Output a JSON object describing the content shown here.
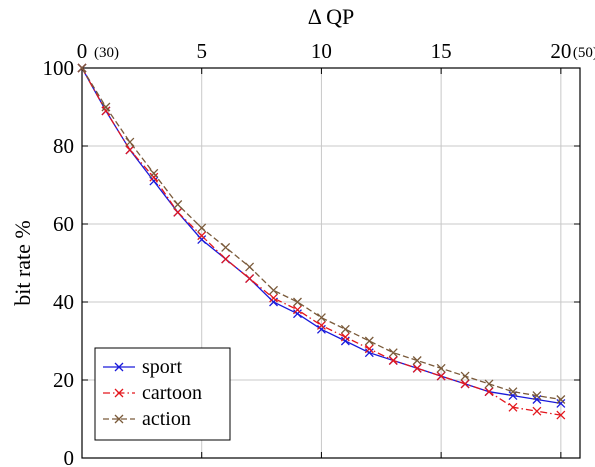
{
  "chart_data": {
    "type": "line",
    "xlabel": "Δ QP",
    "ylabel": "bit rate %",
    "xlim": [
      0,
      20.8
    ],
    "ylim": [
      0,
      100
    ],
    "x_ticks": [
      "0",
      "5",
      "10",
      "15",
      "20"
    ],
    "x_tick_notes": [
      {
        "at": 0,
        "text": "(30)"
      },
      {
        "at": 20,
        "text": "(50)"
      }
    ],
    "y_ticks": [
      "0",
      "20",
      "40",
      "60",
      "80",
      "100"
    ],
    "x_axis_position": "top",
    "grid": true,
    "legend_position": "bottom-left",
    "series": [
      {
        "name": "sport",
        "color": "#1a1adb",
        "marker": "x",
        "dash": "solid",
        "x": [
          0,
          1,
          2,
          3,
          4,
          5,
          6,
          7,
          8,
          9,
          10,
          11,
          12,
          13,
          14,
          15,
          16,
          17,
          18,
          19,
          20
        ],
        "y": [
          100,
          89,
          79,
          71,
          63,
          56,
          51,
          46,
          40,
          37,
          33,
          30,
          27,
          25,
          23,
          21,
          19,
          17,
          16,
          15,
          14
        ]
      },
      {
        "name": "cartoon",
        "color": "#e3161c",
        "marker": "x",
        "dash": "dashdot",
        "x": [
          0,
          1,
          2,
          3,
          4,
          5,
          6,
          7,
          8,
          9,
          10,
          11,
          12,
          13,
          14,
          15,
          16,
          17,
          18,
          19,
          20
        ],
        "y": [
          100,
          89,
          79,
          72,
          63,
          57,
          51,
          46,
          41,
          38,
          34,
          31,
          28,
          25,
          23,
          21,
          19,
          17,
          13,
          12,
          11
        ]
      },
      {
        "name": "action",
        "color": "#7a5a3a",
        "marker": "x",
        "dash": "dashed",
        "x": [
          0,
          1,
          2,
          3,
          4,
          5,
          6,
          7,
          8,
          9,
          10,
          11,
          12,
          13,
          14,
          15,
          16,
          17,
          18,
          19,
          20
        ],
        "y": [
          100,
          90,
          81,
          73,
          65,
          59,
          54,
          49,
          43,
          40,
          36,
          33,
          30,
          27,
          25,
          23,
          21,
          19,
          17,
          16,
          15
        ]
      }
    ]
  }
}
